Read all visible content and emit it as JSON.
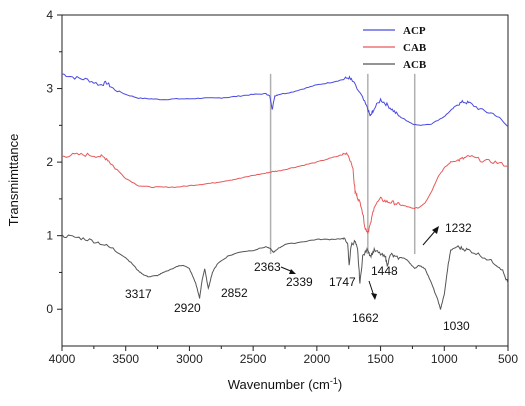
{
  "chart_data": {
    "type": "line",
    "title": "",
    "xlabel": "Wavenumber (cm",
    "xlabel_sup": "-1",
    "xlabel_end": ")",
    "ylabel": "Transmimttance",
    "xlim": [
      4000,
      500
    ],
    "ylim": [
      -0.5,
      4
    ],
    "x_ticks": [
      "4000",
      "3500",
      "3000",
      "2500",
      "2000",
      "1500",
      "1000",
      "500"
    ],
    "y_ticks": [
      "0",
      "1",
      "2",
      "3",
      "4"
    ],
    "legend_position": "top-right",
    "series": [
      {
        "name": "ACP",
        "color": "#4a4ae0",
        "points": [
          [
            4000,
            3.2
          ],
          [
            3900,
            3.15
          ],
          [
            3800,
            3.12
          ],
          [
            3700,
            3.05
          ],
          [
            3650,
            3.08
          ],
          [
            3600,
            3.0
          ],
          [
            3500,
            2.92
          ],
          [
            3400,
            2.87
          ],
          [
            3300,
            2.86
          ],
          [
            3200,
            2.85
          ],
          [
            3100,
            2.86
          ],
          [
            3000,
            2.86
          ],
          [
            2900,
            2.87
          ],
          [
            2800,
            2.87
          ],
          [
            2700,
            2.88
          ],
          [
            2600,
            2.9
          ],
          [
            2500,
            2.92
          ],
          [
            2400,
            2.93
          ],
          [
            2370,
            2.9
          ],
          [
            2350,
            2.72
          ],
          [
            2330,
            2.9
          ],
          [
            2300,
            2.92
          ],
          [
            2200,
            2.95
          ],
          [
            2100,
            3.0
          ],
          [
            2000,
            3.05
          ],
          [
            1900,
            3.08
          ],
          [
            1800,
            3.12
          ],
          [
            1750,
            3.15
          ],
          [
            1720,
            3.1
          ],
          [
            1650,
            2.9
          ],
          [
            1600,
            2.72
          ],
          [
            1580,
            2.62
          ],
          [
            1560,
            2.7
          ],
          [
            1500,
            2.85
          ],
          [
            1450,
            2.78
          ],
          [
            1400,
            2.7
          ],
          [
            1350,
            2.62
          ],
          [
            1300,
            2.57
          ],
          [
            1250,
            2.52
          ],
          [
            1200,
            2.5
          ],
          [
            1100,
            2.52
          ],
          [
            1000,
            2.62
          ],
          [
            950,
            2.7
          ],
          [
            900,
            2.78
          ],
          [
            850,
            2.82
          ],
          [
            800,
            2.8
          ],
          [
            700,
            2.7
          ],
          [
            600,
            2.65
          ],
          [
            500,
            2.48
          ]
        ]
      },
      {
        "name": "CAB",
        "color": "#e85a5a",
        "points": [
          [
            4000,
            2.08
          ],
          [
            3900,
            2.1
          ],
          [
            3800,
            2.1
          ],
          [
            3700,
            2.08
          ],
          [
            3650,
            2.05
          ],
          [
            3600,
            1.95
          ],
          [
            3500,
            1.78
          ],
          [
            3400,
            1.68
          ],
          [
            3300,
            1.66
          ],
          [
            3200,
            1.66
          ],
          [
            3100,
            1.66
          ],
          [
            3000,
            1.68
          ],
          [
            2900,
            1.7
          ],
          [
            2800,
            1.72
          ],
          [
            2700,
            1.75
          ],
          [
            2600,
            1.78
          ],
          [
            2500,
            1.82
          ],
          [
            2400,
            1.85
          ],
          [
            2350,
            1.87
          ],
          [
            2300,
            1.88
          ],
          [
            2200,
            1.92
          ],
          [
            2100,
            1.96
          ],
          [
            2000,
            2.0
          ],
          [
            1900,
            2.05
          ],
          [
            1800,
            2.1
          ],
          [
            1760,
            2.12
          ],
          [
            1720,
            1.95
          ],
          [
            1700,
            1.6
          ],
          [
            1680,
            1.52
          ],
          [
            1650,
            1.4
          ],
          [
            1620,
            1.1
          ],
          [
            1600,
            1.05
          ],
          [
            1580,
            1.15
          ],
          [
            1550,
            1.4
          ],
          [
            1500,
            1.5
          ],
          [
            1450,
            1.46
          ],
          [
            1400,
            1.45
          ],
          [
            1350,
            1.42
          ],
          [
            1300,
            1.4
          ],
          [
            1250,
            1.37
          ],
          [
            1200,
            1.38
          ],
          [
            1150,
            1.45
          ],
          [
            1100,
            1.6
          ],
          [
            1050,
            1.8
          ],
          [
            1000,
            1.92
          ],
          [
            950,
            2.0
          ],
          [
            900,
            2.02
          ],
          [
            850,
            2.05
          ],
          [
            800,
            2.08
          ],
          [
            700,
            2.02
          ],
          [
            600,
            2.0
          ],
          [
            500,
            1.95
          ]
        ]
      },
      {
        "name": "ACB",
        "color": "#555555",
        "points": [
          [
            4000,
            1.0
          ],
          [
            3900,
            0.98
          ],
          [
            3800,
            0.95
          ],
          [
            3700,
            0.9
          ],
          [
            3600,
            0.82
          ],
          [
            3500,
            0.7
          ],
          [
            3450,
            0.62
          ],
          [
            3400,
            0.52
          ],
          [
            3350,
            0.46
          ],
          [
            3317,
            0.44
          ],
          [
            3250,
            0.46
          ],
          [
            3200,
            0.5
          ],
          [
            3100,
            0.58
          ],
          [
            3050,
            0.6
          ],
          [
            3000,
            0.55
          ],
          [
            2950,
            0.35
          ],
          [
            2920,
            0.15
          ],
          [
            2900,
            0.4
          ],
          [
            2880,
            0.55
          ],
          [
            2852,
            0.28
          ],
          [
            2820,
            0.5
          ],
          [
            2780,
            0.62
          ],
          [
            2700,
            0.72
          ],
          [
            2600,
            0.78
          ],
          [
            2500,
            0.8
          ],
          [
            2400,
            0.85
          ],
          [
            2363,
            0.82
          ],
          [
            2339,
            0.77
          ],
          [
            2310,
            0.82
          ],
          [
            2250,
            0.88
          ],
          [
            2100,
            0.92
          ],
          [
            2000,
            0.95
          ],
          [
            1900,
            0.95
          ],
          [
            1800,
            0.96
          ],
          [
            1760,
            0.92
          ],
          [
            1747,
            0.6
          ],
          [
            1730,
            0.88
          ],
          [
            1700,
            0.92
          ],
          [
            1680,
            0.8
          ],
          [
            1662,
            0.35
          ],
          [
            1640,
            0.72
          ],
          [
            1600,
            0.82
          ],
          [
            1580,
            0.72
          ],
          [
            1550,
            0.8
          ],
          [
            1500,
            0.75
          ],
          [
            1460,
            0.7
          ],
          [
            1448,
            0.6
          ],
          [
            1420,
            0.75
          ],
          [
            1380,
            0.7
          ],
          [
            1320,
            0.7
          ],
          [
            1280,
            0.65
          ],
          [
            1232,
            0.55
          ],
          [
            1200,
            0.6
          ],
          [
            1150,
            0.55
          ],
          [
            1100,
            0.35
          ],
          [
            1050,
            0.12
          ],
          [
            1030,
            0.0
          ],
          [
            1000,
            0.2
          ],
          [
            970,
            0.6
          ],
          [
            950,
            0.8
          ],
          [
            900,
            0.85
          ],
          [
            850,
            0.82
          ],
          [
            800,
            0.8
          ],
          [
            700,
            0.72
          ],
          [
            600,
            0.62
          ],
          [
            550,
            0.55
          ],
          [
            500,
            0.35
          ]
        ]
      }
    ],
    "reference_lines": [
      2363,
      1600,
      1232
    ],
    "annotations": [
      {
        "text": "3317",
        "x": 3317
      },
      {
        "text": "2920",
        "x": 2920
      },
      {
        "text": "2852",
        "x": 2852
      },
      {
        "text": "2363",
        "x": 2363
      },
      {
        "text": "2339",
        "x": 2339
      },
      {
        "text": "1747",
        "x": 1747
      },
      {
        "text": "1448",
        "x": 1448
      },
      {
        "text": "1662",
        "x": 1662
      },
      {
        "text": "1232",
        "x": 1232
      },
      {
        "text": "1030",
        "x": 1030
      }
    ]
  }
}
